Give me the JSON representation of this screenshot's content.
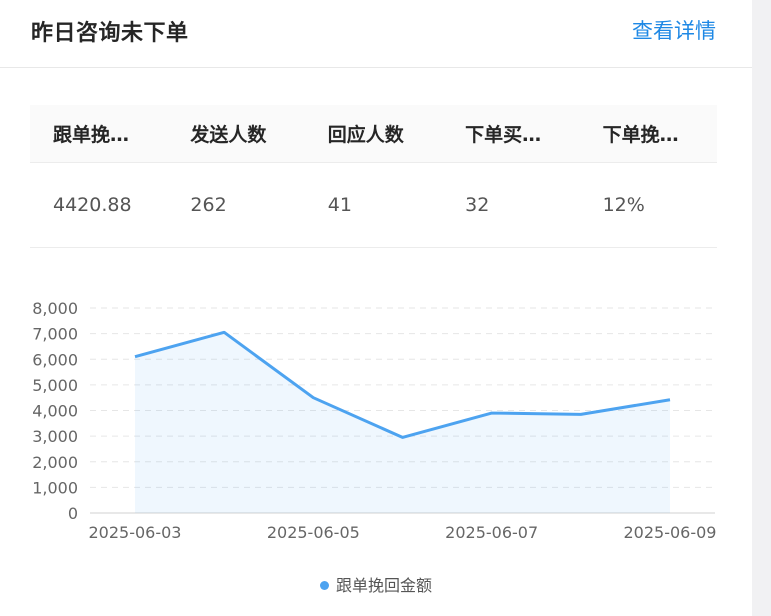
{
  "header": {
    "title": "昨日咨询未下单",
    "detail_link": "查看详情"
  },
  "table": {
    "columns": [
      "跟单挽…",
      "发送人数",
      "回应人数",
      "下单买…",
      "下单挽…"
    ],
    "rows": [
      [
        "4420.88",
        "262",
        "41",
        "32",
        "12%"
      ]
    ]
  },
  "chart_data": {
    "type": "area",
    "x": [
      "2025-06-03",
      "2025-06-04",
      "2025-06-05",
      "2025-06-06",
      "2025-06-07",
      "2025-06-08",
      "2025-06-09"
    ],
    "x_tick_labels": [
      "2025-06-03",
      "2025-06-05",
      "2025-06-07",
      "2025-06-09"
    ],
    "series": [
      {
        "name": "跟单挽回金额",
        "values": [
          6100,
          7050,
          4500,
          2950,
          3900,
          3850,
          4420
        ],
        "color": "#4da3f0"
      }
    ],
    "ylim": [
      0,
      8000
    ],
    "y_ticks": [
      "0",
      "1,000",
      "2,000",
      "3,000",
      "4,000",
      "5,000",
      "6,000",
      "7,000",
      "8,000"
    ],
    "grid": true,
    "legend": "bottom-center"
  }
}
